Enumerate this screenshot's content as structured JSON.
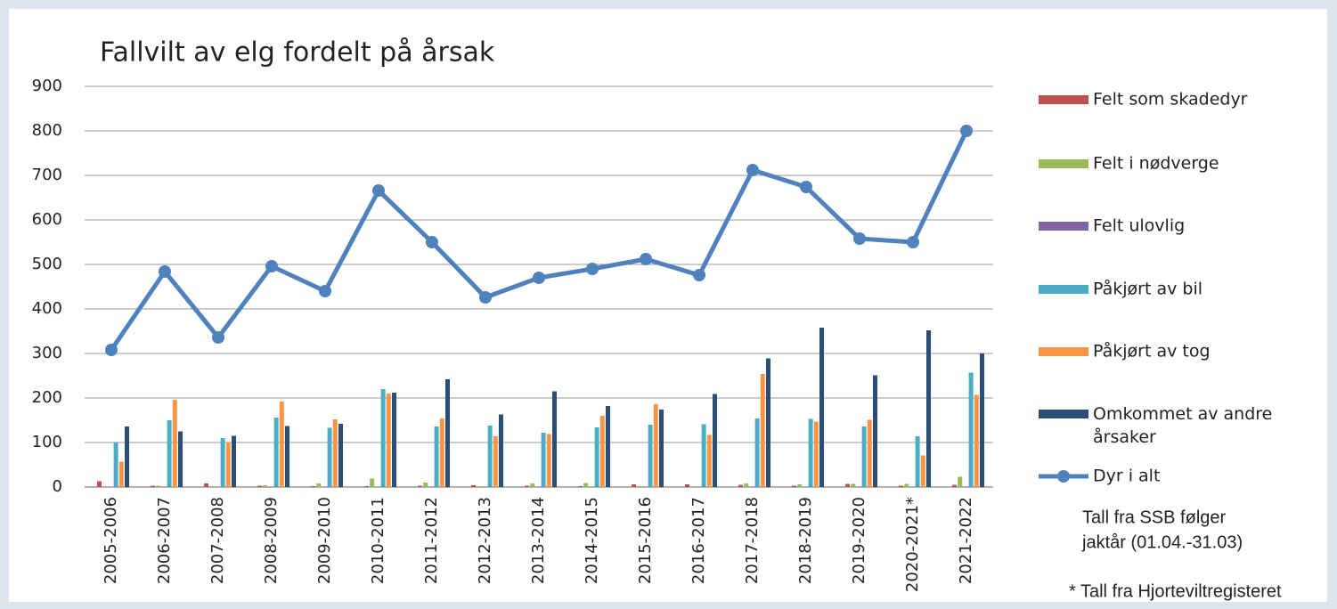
{
  "chart_data": {
    "type": "bar-line",
    "title": "Fallvilt av elg fordelt på årsak",
    "categories": [
      "2005-2006",
      "2006-2007",
      "2007-2008",
      "2008-2009",
      "2009-2010",
      "2010-2011",
      "2011-2012",
      "2012-2013",
      "2013-2014",
      "2014-2015",
      "2015-2016",
      "2016-2017",
      "2017-2018",
      "2018-2019",
      "2019-2020",
      "2020-2021*",
      "2021-2022"
    ],
    "series": [
      {
        "name": "Felt som skadedyr",
        "type": "bar",
        "color": "#c0504d",
        "values": [
          13,
          3,
          8,
          3,
          2,
          2,
          3,
          4,
          3,
          2,
          6,
          6,
          5,
          3,
          7,
          3,
          5
        ]
      },
      {
        "name": "Felt i nødverge",
        "type": "bar",
        "color": "#9bbb59",
        "values": [
          0,
          3,
          0,
          4,
          8,
          19,
          10,
          2,
          8,
          9,
          2,
          0,
          8,
          6,
          7,
          7,
          23
        ]
      },
      {
        "name": "Felt ulovlig",
        "type": "bar",
        "color": "#8064a2",
        "values": [
          0,
          0,
          0,
          0,
          0,
          0,
          0,
          0,
          0,
          0,
          0,
          0,
          0,
          0,
          0,
          0,
          0
        ]
      },
      {
        "name": "Påkjørt av bil",
        "type": "bar",
        "color": "#4bacc6",
        "values": [
          100,
          150,
          110,
          156,
          133,
          220,
          136,
          138,
          122,
          134,
          140,
          141,
          154,
          153,
          136,
          114,
          257
        ]
      },
      {
        "name": "Påkjørt av tog",
        "type": "bar",
        "color": "#f79646",
        "values": [
          57,
          196,
          100,
          192,
          152,
          210,
          154,
          114,
          119,
          160,
          186,
          117,
          254,
          147,
          151,
          71,
          207
        ]
      },
      {
        "name": "Omkommet av andre årsaker",
        "type": "bar",
        "color": "#2c4d75",
        "values": [
          136,
          125,
          115,
          137,
          142,
          212,
          242,
          163,
          215,
          182,
          174,
          209,
          289,
          358,
          251,
          352,
          300
        ]
      },
      {
        "name": "Dyr i alt",
        "type": "line",
        "color": "#4f81bd",
        "values": [
          308,
          484,
          336,
          496,
          440,
          666,
          550,
          426,
          470,
          490,
          512,
          476,
          712,
          674,
          558,
          550,
          800
        ]
      }
    ],
    "ylim": [
      0,
      900
    ],
    "yticks": [
      0,
      100,
      200,
      300,
      400,
      500,
      600,
      700,
      800,
      900
    ],
    "grid": true,
    "legend": "right",
    "notes": [
      "Tall fra SSB følger",
      "jaktår (01.04.-31.03)"
    ],
    "footnote": "* Tall fra Hjorteviltregisteret"
  }
}
